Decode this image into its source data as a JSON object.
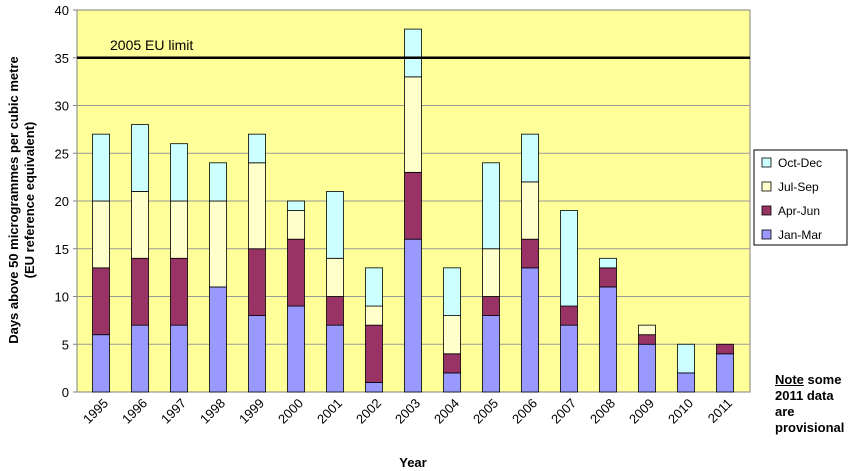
{
  "chart_data": {
    "type": "bar",
    "stacked": true,
    "categories": [
      "1995",
      "1996",
      "1997",
      "1998",
      "1999",
      "2000",
      "2001",
      "2002",
      "2003",
      "2004",
      "2005",
      "2006",
      "2007",
      "2008",
      "2009",
      "2010",
      "2011"
    ],
    "series": [
      {
        "name": "Jan-Mar",
        "color": "#9999ff",
        "values": [
          6,
          7,
          7,
          11,
          8,
          9,
          7,
          1,
          16,
          2,
          8,
          13,
          7,
          11,
          5,
          2,
          4
        ]
      },
      {
        "name": "Apr-Jun",
        "color": "#993366",
        "values": [
          7,
          7,
          7,
          0,
          7,
          7,
          3,
          6,
          7,
          2,
          2,
          3,
          2,
          2,
          1,
          0,
          1
        ]
      },
      {
        "name": "Jul-Sep",
        "color": "#ffffcc",
        "values": [
          7,
          7,
          6,
          9,
          9,
          3,
          4,
          2,
          10,
          4,
          5,
          6,
          0,
          0,
          1,
          0,
          0
        ]
      },
      {
        "name": "Oct-Dec",
        "color": "#ccffff",
        "values": [
          7,
          7,
          6,
          4,
          3,
          1,
          7,
          4,
          5,
          5,
          9,
          5,
          10,
          1,
          0,
          3,
          0
        ]
      }
    ],
    "xlabel": "Year",
    "ylabel_lines": [
      "Days above 50 microgrammes per cubic metre",
      "(EU reference equivalent)"
    ],
    "ylim": [
      0,
      40
    ],
    "yticks": [
      0,
      5,
      10,
      15,
      20,
      25,
      30,
      35,
      40
    ],
    "reference_line": {
      "value": 35,
      "label": "2005 EU limit"
    },
    "legend_order": [
      "Oct-Dec",
      "Jul-Sep",
      "Apr-Jun",
      "Jan-Mar"
    ],
    "legend_position": "right",
    "plot_background": "#ffff99",
    "grid": true,
    "grid_color": "#9a9a9a"
  },
  "note": {
    "underlined": "Note",
    "rest_first_line": " some",
    "lines": [
      "2011 data",
      "are",
      "provisional"
    ]
  }
}
